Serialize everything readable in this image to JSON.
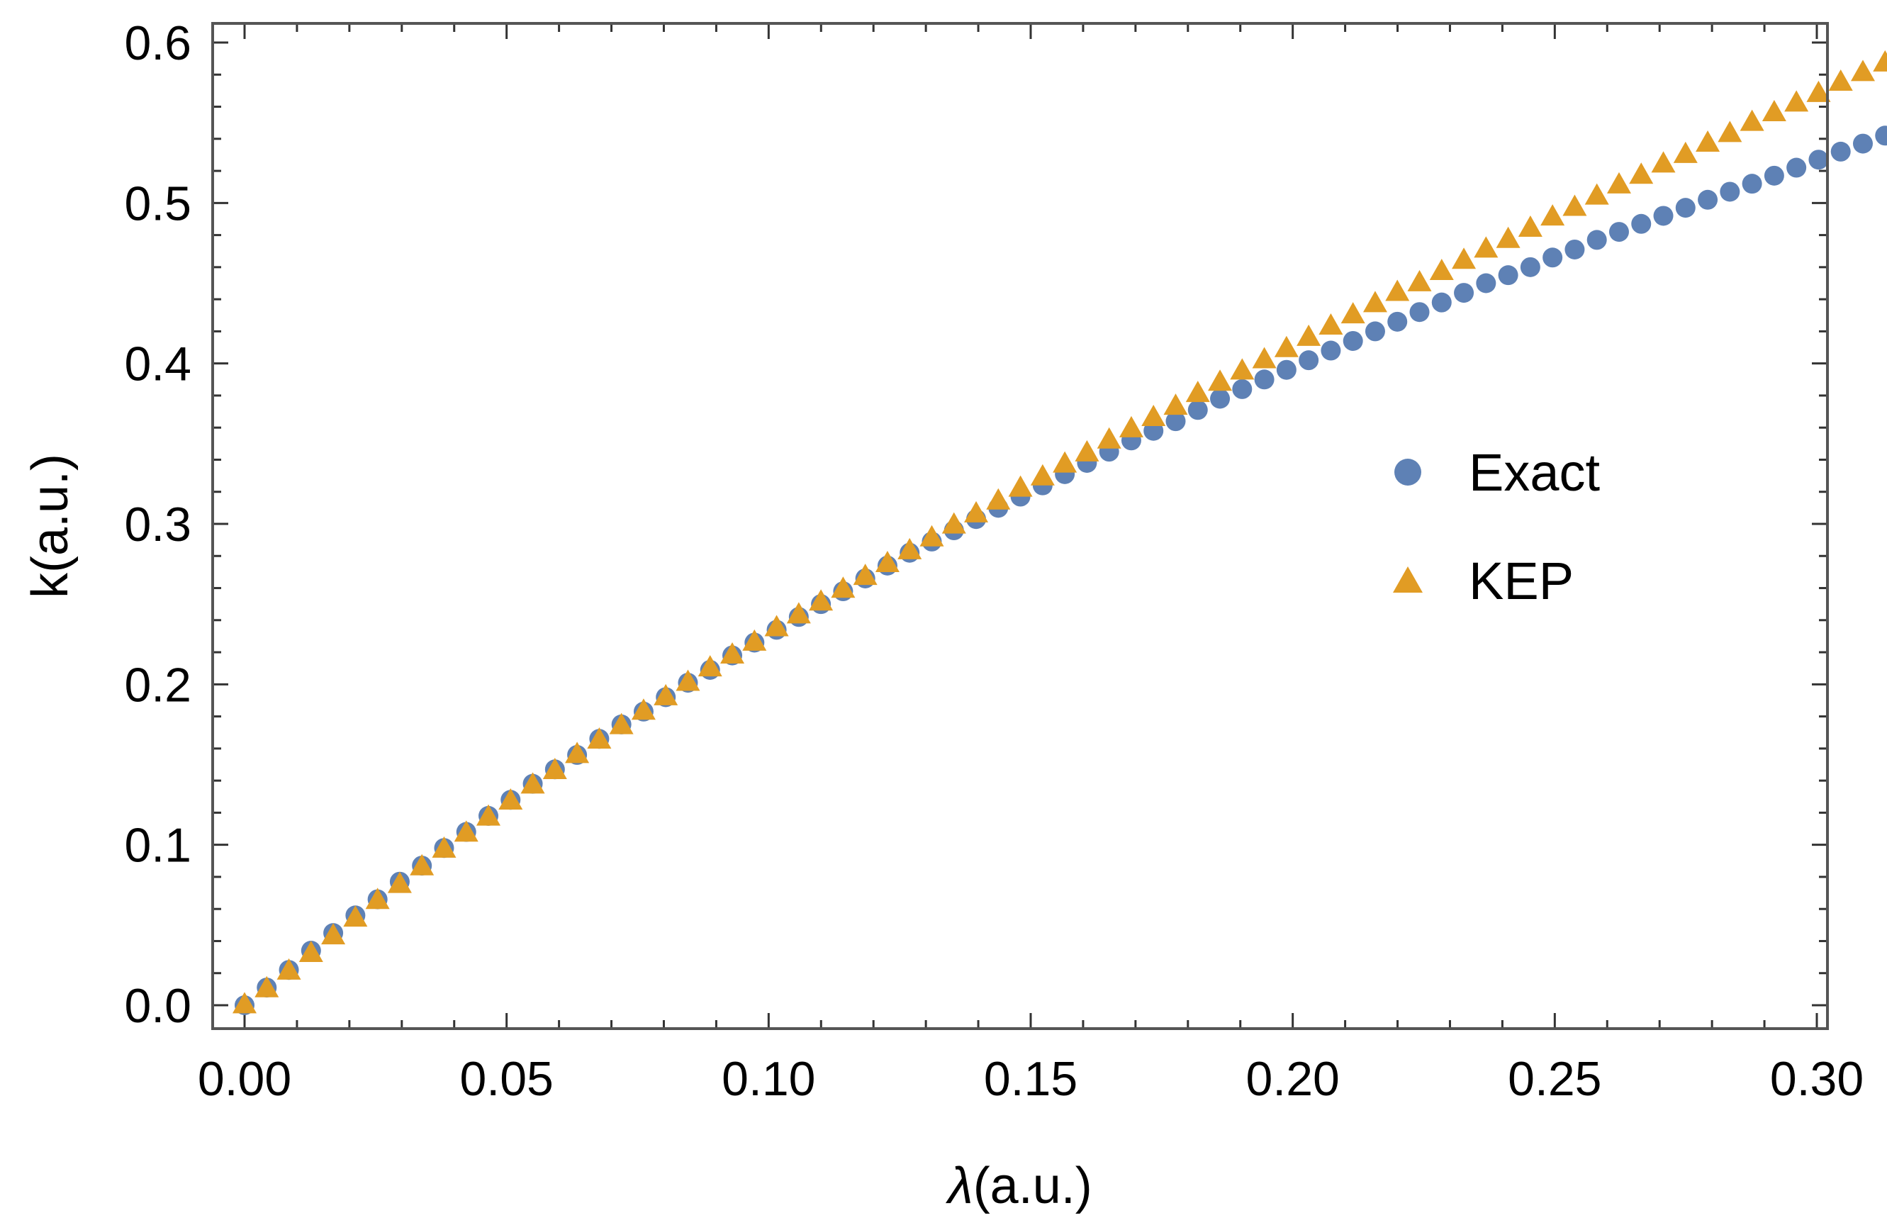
{
  "chart_data": {
    "type": "scatter",
    "title": "",
    "xlabel_symbol": "λ",
    "xlabel_unit": "(a.u.)",
    "ylabel": "k(a.u.)",
    "xlim": [
      0.0,
      0.3
    ],
    "ylim": [
      0.0,
      0.6
    ],
    "x_ticks": [
      0.0,
      0.05,
      0.1,
      0.15,
      0.2,
      0.25,
      0.3
    ],
    "x_tick_labels": [
      "0.00",
      "0.05",
      "0.10",
      "0.15",
      "0.20",
      "0.25",
      "0.30"
    ],
    "y_ticks": [
      0.0,
      0.1,
      0.2,
      0.3,
      0.4,
      0.5,
      0.6
    ],
    "y_tick_labels": [
      "0.0",
      "0.1",
      "0.2",
      "0.3",
      "0.4",
      "0.5",
      "0.6"
    ],
    "grid": false,
    "legend_position": "right-center",
    "x_start": 0.0,
    "x_step": 0.00423,
    "series": [
      {
        "name": "Exact",
        "marker": "circle",
        "color": "#5E81B5",
        "values": [
          0.0,
          0.011,
          0.022,
          0.034,
          0.045,
          0.056,
          0.066,
          0.077,
          0.087,
          0.098,
          0.108,
          0.118,
          0.128,
          0.138,
          0.147,
          0.156,
          0.166,
          0.175,
          0.183,
          0.192,
          0.201,
          0.209,
          0.218,
          0.226,
          0.234,
          0.242,
          0.25,
          0.258,
          0.266,
          0.274,
          0.282,
          0.289,
          0.296,
          0.303,
          0.31,
          0.317,
          0.324,
          0.331,
          0.338,
          0.345,
          0.352,
          0.358,
          0.364,
          0.371,
          0.378,
          0.384,
          0.39,
          0.396,
          0.402,
          0.408,
          0.414,
          0.42,
          0.426,
          0.432,
          0.438,
          0.444,
          0.45,
          0.455,
          0.46,
          0.466,
          0.471,
          0.477,
          0.482,
          0.487,
          0.492,
          0.497,
          0.502,
          0.507,
          0.512,
          0.517,
          0.522,
          0.527,
          0.532,
          0.537,
          0.542
        ]
      },
      {
        "name": "KEP",
        "marker": "triangle",
        "color": "#E19C24",
        "values": [
          0.0,
          0.01,
          0.021,
          0.032,
          0.043,
          0.054,
          0.065,
          0.075,
          0.086,
          0.097,
          0.107,
          0.117,
          0.127,
          0.137,
          0.146,
          0.156,
          0.165,
          0.174,
          0.183,
          0.192,
          0.201,
          0.21,
          0.218,
          0.226,
          0.235,
          0.243,
          0.251,
          0.259,
          0.267,
          0.275,
          0.283,
          0.291,
          0.299,
          0.306,
          0.314,
          0.322,
          0.329,
          0.337,
          0.344,
          0.352,
          0.359,
          0.366,
          0.373,
          0.381,
          0.388,
          0.395,
          0.402,
          0.409,
          0.416,
          0.423,
          0.43,
          0.437,
          0.444,
          0.45,
          0.457,
          0.464,
          0.471,
          0.477,
          0.484,
          0.491,
          0.497,
          0.504,
          0.511,
          0.517,
          0.524,
          0.53,
          0.537,
          0.543,
          0.55,
          0.556,
          0.562,
          0.568,
          0.575,
          0.581,
          0.587
        ]
      }
    ]
  }
}
